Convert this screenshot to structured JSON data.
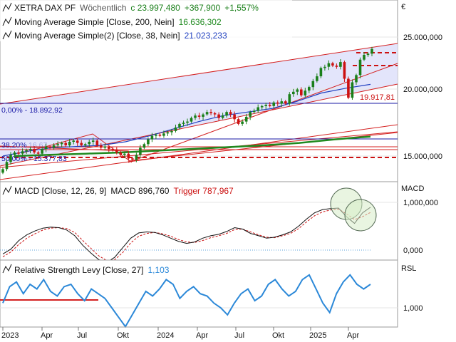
{
  "header": {
    "instrument": "XETRA DAX PF",
    "period": "Wöchentlich",
    "close": "c 23.997,480",
    "change": "+367,900",
    "change_pct": "+1,557%",
    "currency": "€"
  },
  "indicators": {
    "ma200": {
      "label": "Moving Average Simple [Close, 200, Nein]",
      "value": "16.636,302"
    },
    "ma38": {
      "label": "Moving Average Simple(2) [Close, 38, Nein]",
      "value": "21.023,233"
    },
    "macd": {
      "label": "MACD [Close, 12, 26, 9]",
      "macd_text": "MACD 896,760",
      "trigger_text": "Trigger 787,967"
    },
    "rsl": {
      "label": "Relative Strength Levy [Close, 27]",
      "value": "1,103"
    }
  },
  "annotations": {
    "fib_0": "0,00% - 18.892,92",
    "fib_38": "38,20%",
    "fib_50": "50,00% - 15.377,83",
    "fib_faint": "16.67",
    "support_label": "19.917,81"
  },
  "axes": {
    "price_ticks": [
      "25.000,000",
      "20.000,000",
      "15.000,000"
    ],
    "macd_title": "MACD",
    "macd_ticks": [
      "1,000,000",
      "0,000"
    ],
    "rsl_title": "RSL",
    "rsl_ticks": [
      "1,000"
    ],
    "x_ticks": [
      "2023",
      "Apr",
      "Jul",
      "Okt",
      "2024",
      "Apr",
      "Jul",
      "Okt",
      "2025",
      "Apr"
    ]
  },
  "colors": {
    "up": "#1a7f1a",
    "down": "#cc1111",
    "ma200": "#1f8a1f",
    "ma38": "#2040c0",
    "channel": "#d42020",
    "fib": "#1a1aa6",
    "macd": "#111111",
    "trigger": "#cc1111",
    "rsl": "#2b88d8",
    "band": "#e3e5fb"
  },
  "chart_data": [
    {
      "type": "candlestick",
      "title": "XETRA DAX PF",
      "frequency": "weekly",
      "x_range": [
        "2023-01",
        "2025-05"
      ],
      "ylim": [
        13500,
        25500
      ],
      "close": [
        13900,
        14500,
        15100,
        15300,
        15200,
        15400,
        15500,
        15600,
        15300,
        15200,
        15600,
        15800,
        15700,
        15900,
        16000,
        16100,
        15900,
        16200,
        16300,
        16100,
        15900,
        16000,
        16200,
        16300,
        15900,
        15700,
        15800,
        15600,
        15500,
        15300,
        15100,
        15200,
        14800,
        14700,
        15100,
        15700,
        16000,
        16400,
        16700,
        16800,
        16700,
        16900,
        17000,
        17100,
        17400,
        17700,
        17800,
        17900,
        18200,
        18400,
        18300,
        18500,
        18700,
        18600,
        18500,
        18200,
        18400,
        18700,
        18500,
        18100,
        17700,
        17900,
        18300,
        18700,
        18800,
        19100,
        19200,
        19300,
        19200,
        19500,
        19400,
        19600,
        19400,
        20200,
        20400,
        20600,
        20100,
        20500,
        20800,
        21300,
        21700,
        22400,
        22500,
        22800,
        22600,
        22500,
        22900,
        21500,
        19900,
        21200,
        21800,
        23100,
        23500,
        23600,
        23998
      ],
      "series": [
        {
          "name": "Moving Average Simple [Close, 200, Nein]",
          "last_value": 16636.302,
          "values": [
            15000,
            15100,
            15200,
            15300,
            15450,
            15600,
            15750,
            15900,
            16100,
            16400,
            16636
          ]
        },
        {
          "name": "Moving Average Simple(2) [Close, 38, Nein]",
          "last_value": 21023.233,
          "values": [
            15000,
            15400,
            15700,
            15800,
            15900,
            16200,
            16700,
            17300,
            17900,
            18400,
            18700,
            19000,
            19600,
            20300,
            20700,
            21023
          ]
        }
      ],
      "fibonacci": [
        {
          "label": "0,00%",
          "value": 18892.92
        },
        {
          "label": "38,20%",
          "value": 16670
        },
        {
          "label": "50,00%",
          "value": 15377.83
        }
      ],
      "support": 19917.81,
      "resistance": 23400,
      "y_ticks": [
        25000,
        20000,
        15000
      ]
    },
    {
      "type": "line",
      "title": "MACD [Close, 12, 26, 9]",
      "series": [
        {
          "name": "MACD",
          "last_value": 896.76,
          "values": [
            -80,
            20,
            200,
            320,
            400,
            460,
            480,
            470,
            420,
            300,
            100,
            -60,
            -200,
            -260,
            -150,
            50,
            250,
            360,
            380,
            370,
            320,
            250,
            180,
            140,
            170,
            250,
            300,
            330,
            390,
            470,
            440,
            350,
            300,
            250,
            270,
            320,
            380,
            500,
            650,
            780,
            850,
            870,
            880,
            700,
            560,
            780,
            897
          ]
        },
        {
          "name": "Trigger",
          "last_value": 787.967,
          "values": [
            -140,
            -40,
            120,
            250,
            340,
            420,
            460,
            470,
            450,
            370,
            200,
            40,
            -120,
            -220,
            -200,
            -50,
            150,
            290,
            350,
            370,
            340,
            290,
            220,
            170,
            160,
            200,
            260,
            300,
            350,
            430,
            440,
            380,
            320,
            270,
            260,
            300,
            350,
            450,
            590,
            720,
            800,
            840,
            860,
            760,
            640,
            700,
            788
          ]
        }
      ],
      "y_ticks": [
        1000,
        0
      ]
    },
    {
      "type": "line",
      "title": "Relative Strength Levy [Close, 27]",
      "series": [
        {
          "name": "Relative Strength Levy",
          "last_value": 1.103,
          "values": [
            1.02,
            1.09,
            1.11,
            1.06,
            1.1,
            1.08,
            1.12,
            1.07,
            1.05,
            1.09,
            1.1,
            1.06,
            1.03,
            1.08,
            1.06,
            1.04,
            1.0,
            0.96,
            0.92,
            0.97,
            1.02,
            1.07,
            1.05,
            1.08,
            1.12,
            1.1,
            1.04,
            1.07,
            1.09,
            1.06,
            1.05,
            1.02,
            1.0,
            0.97,
            1.02,
            1.06,
            1.08,
            1.03,
            1.05,
            1.1,
            1.12,
            1.08,
            1.05,
            1.07,
            1.12,
            1.14,
            1.08,
            1.02,
            0.98,
            1.06,
            1.11,
            1.14,
            1.1,
            1.08,
            1.1
          ]
        }
      ],
      "reference_level": 1.04,
      "y_ticks": [
        1.0
      ]
    }
  ]
}
